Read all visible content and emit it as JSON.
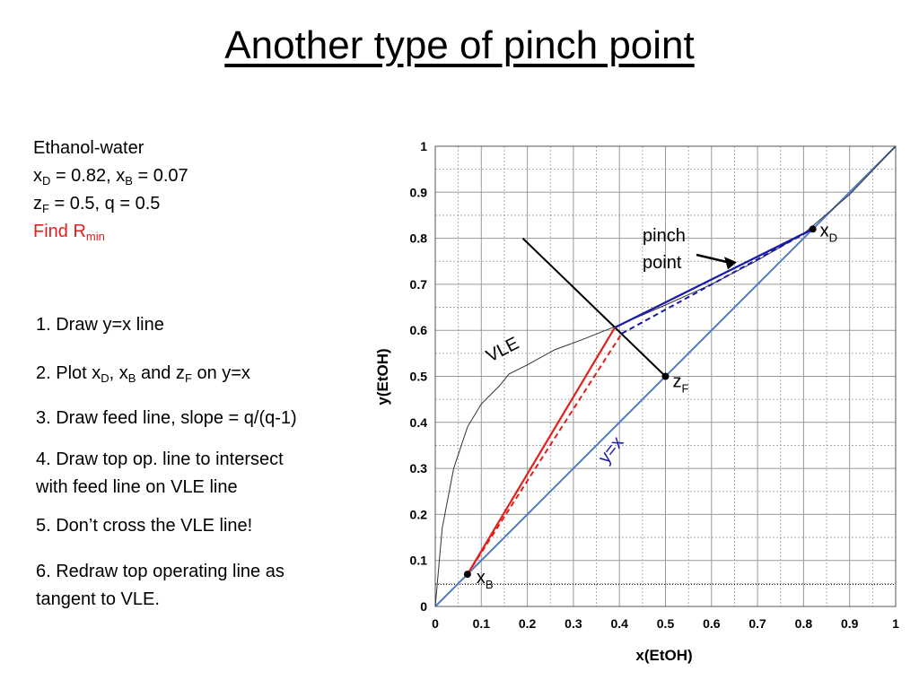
{
  "title": "Another type of pinch point",
  "problem": {
    "system": "Ethanol-water",
    "spec_line1": {
      "x": "x",
      "sub_d": "D",
      "val_d": " = 0.82, x",
      "sub_b": "B",
      "val_b": " = 0.07"
    },
    "spec_line2": {
      "z": "z",
      "sub_f": "F",
      "val_f": " = 0.5, q = 0.5"
    },
    "find": {
      "text": "Find R",
      "sub": "min"
    }
  },
  "steps": {
    "s1": "1. Draw y=x line",
    "s2": {
      "a": "2. Plot x",
      "sub_d": "D",
      "b": ", x",
      "sub_b": "B",
      "c": " and z",
      "sub_f": "F",
      "d": " on y=x"
    },
    "s3": "3. Draw feed line, slope = q/(q-1)",
    "s4_line1": "4. Draw top op. line to intersect",
    "s4_line2": "with feed line on VLE line",
    "s5": "5. Don’t cross the VLE line!",
    "s6_line1": "6. Redraw top operating line as",
    "s6_line2": "tangent to VLE."
  },
  "chart_data": {
    "type": "line",
    "xlabel": "x(EtOH)",
    "ylabel": "y(EtOH)",
    "xlim": [
      0,
      1
    ],
    "ylim": [
      0,
      1
    ],
    "x_ticks": [
      "0",
      "0.1",
      "0.2",
      "0.3",
      "0.4",
      "0.5",
      "0.6",
      "0.7",
      "0.8",
      "0.9",
      "1"
    ],
    "y_ticks": [
      "0",
      "0.1",
      "0.2",
      "0.3",
      "0.4",
      "0.5",
      "0.6",
      "0.7",
      "0.8",
      "0.9",
      "1"
    ],
    "grid": true,
    "minor_grid_step": 0.05,
    "colors": {
      "vle": "#333333",
      "diagonal": "#4a7cc9",
      "operating_top": "#1a1aa8",
      "operating_bottom": "#e0201c",
      "feed": "#000000",
      "grid": "#999999"
    },
    "vle": [
      [
        0,
        0
      ],
      [
        0.015,
        0.17
      ],
      [
        0.04,
        0.3
      ],
      [
        0.07,
        0.39
      ],
      [
        0.1,
        0.44
      ],
      [
        0.14,
        0.48
      ],
      [
        0.16,
        0.505
      ],
      [
        0.2,
        0.525
      ],
      [
        0.26,
        0.558
      ],
      [
        0.32,
        0.58
      ],
      [
        0.4,
        0.612
      ],
      [
        0.5,
        0.655
      ],
      [
        0.6,
        0.7
      ],
      [
        0.7,
        0.752
      ],
      [
        0.8,
        0.81
      ],
      [
        0.9,
        0.895
      ],
      [
        1,
        1
      ]
    ],
    "diagonal": [
      [
        0,
        0
      ],
      [
        1,
        1
      ]
    ],
    "feed_line": [
      [
        0.19,
        0.8
      ],
      [
        0.5,
        0.5
      ]
    ],
    "top_op_line_vle": [
      [
        0.39,
        0.606
      ],
      [
        0.82,
        0.82
      ]
    ],
    "bottom_op_line_vle": [
      [
        0.07,
        0.07
      ],
      [
        0.39,
        0.606
      ]
    ],
    "top_op_line_tangent": [
      [
        0.405,
        0.593
      ],
      [
        0.82,
        0.82
      ]
    ],
    "bottom_op_line_tangent": [
      [
        0.07,
        0.07
      ],
      [
        0.405,
        0.593
      ]
    ],
    "xb_dotted_line": [
      [
        0,
        0.048
      ],
      [
        1,
        0.048
      ]
    ],
    "points": [
      {
        "name": "xD",
        "x": 0.82,
        "y": 0.82,
        "label": "x",
        "sub": "D"
      },
      {
        "name": "zF",
        "x": 0.5,
        "y": 0.5,
        "label": "z",
        "sub": "F"
      },
      {
        "name": "xB",
        "x": 0.07,
        "y": 0.07,
        "label": "x",
        "sub": "B"
      }
    ],
    "annotations": {
      "vle_label": "VLE",
      "diagonal_label": "y=x",
      "pinch_line1": "pinch",
      "pinch_line2": "point",
      "pinch_target": [
        0.655,
        0.75
      ]
    }
  }
}
